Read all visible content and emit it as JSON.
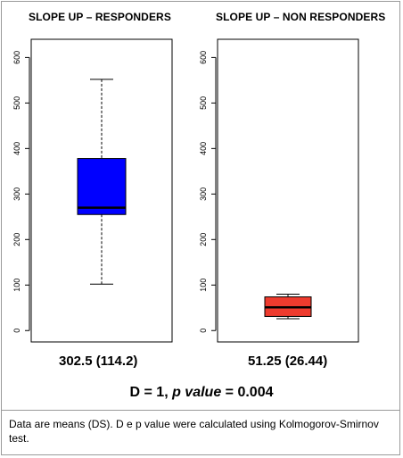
{
  "chart_data": [
    {
      "type": "box",
      "title": "SLOPE UP – RESPONDERS",
      "ylim": [
        -25,
        640
      ],
      "yticks": [
        0,
        100,
        200,
        300,
        400,
        500,
        600
      ],
      "box": {
        "min": 102,
        "q1": 255,
        "median": 270,
        "q3": 378,
        "max": 552
      },
      "color": "#0000ff",
      "summary": "302.5 (114.2)"
    },
    {
      "type": "box",
      "title": "SLOPE UP – NON RESPONDERS",
      "ylim": [
        -25,
        640
      ],
      "yticks": [
        0,
        100,
        200,
        300,
        400,
        500,
        600
      ],
      "box": {
        "min": 26,
        "q1": 31,
        "median": 51,
        "q3": 74,
        "max": 80
      },
      "color": "#ee3b2e",
      "summary": "51.25 (26.44)"
    }
  ],
  "test": {
    "prefix": "D = 1, ",
    "italic": "p value",
    "suffix": " = 0.004"
  },
  "footnote": "Data are means (DS). D e p value were calculated using Kolmogorov-Smirnov test."
}
